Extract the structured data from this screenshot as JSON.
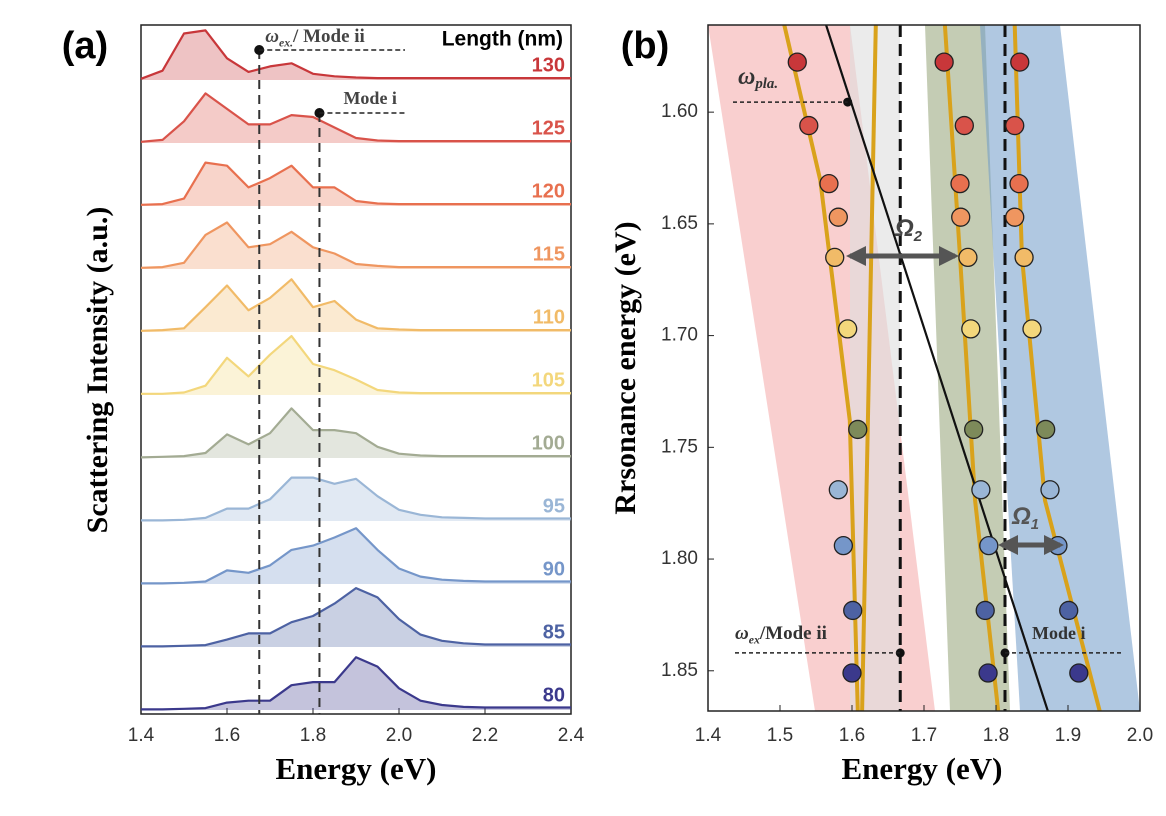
{
  "chart_data": [
    {
      "type": "line",
      "title": "(a)",
      "xlabel": "Energy (eV)",
      "ylabel": "Scattering Intensity (a.u.)",
      "legend_title": "Length (nm)",
      "x": [
        1.4,
        1.45,
        1.5,
        1.55,
        1.6,
        1.65,
        1.7,
        1.75,
        1.8,
        1.85,
        1.9,
        1.95,
        2.0,
        2.05,
        2.1,
        2.15,
        2.2,
        2.25,
        2.3,
        2.35,
        2.4
      ],
      "series": [
        {
          "name": "130",
          "color": "#c8373a",
          "values": [
            0.02,
            0.15,
            0.75,
            0.8,
            0.35,
            0.13,
            0.22,
            0.27,
            0.1,
            0.06,
            0.04,
            0.03,
            0.03,
            0.03,
            0.03,
            0.03,
            0.03,
            0.03,
            0.03,
            0.03,
            0.03
          ]
        },
        {
          "name": "125",
          "color": "#d9534a",
          "values": [
            0.02,
            0.05,
            0.35,
            0.8,
            0.55,
            0.3,
            0.3,
            0.45,
            0.42,
            0.25,
            0.08,
            0.04,
            0.03,
            0.03,
            0.03,
            0.03,
            0.03,
            0.03,
            0.03,
            0.03,
            0.03
          ]
        },
        {
          "name": "120",
          "color": "#e8704f",
          "values": [
            0.02,
            0.03,
            0.12,
            0.7,
            0.65,
            0.3,
            0.45,
            0.65,
            0.3,
            0.3,
            0.08,
            0.04,
            0.03,
            0.03,
            0.03,
            0.03,
            0.03,
            0.03,
            0.03,
            0.03,
            0.03
          ]
        },
        {
          "name": "115",
          "color": "#ef9660",
          "values": [
            0.02,
            0.03,
            0.1,
            0.55,
            0.75,
            0.35,
            0.4,
            0.6,
            0.35,
            0.25,
            0.08,
            0.05,
            0.03,
            0.03,
            0.03,
            0.03,
            0.03,
            0.03,
            0.03,
            0.03,
            0.03
          ]
        },
        {
          "name": "110",
          "color": "#f1bb68",
          "values": [
            0.02,
            0.03,
            0.06,
            0.4,
            0.75,
            0.35,
            0.55,
            0.85,
            0.4,
            0.5,
            0.2,
            0.06,
            0.04,
            0.03,
            0.03,
            0.03,
            0.03,
            0.03,
            0.03,
            0.03,
            0.03
          ]
        },
        {
          "name": "105",
          "color": "#f3d77c",
          "values": [
            0.02,
            0.02,
            0.04,
            0.15,
            0.6,
            0.3,
            0.65,
            0.95,
            0.5,
            0.4,
            0.25,
            0.08,
            0.04,
            0.03,
            0.03,
            0.03,
            0.03,
            0.03,
            0.03,
            0.03,
            0.03
          ]
        },
        {
          "name": "100",
          "color": "#a3ab93",
          "values": [
            0.01,
            0.02,
            0.03,
            0.08,
            0.38,
            0.22,
            0.4,
            0.8,
            0.45,
            0.45,
            0.4,
            0.18,
            0.07,
            0.04,
            0.03,
            0.03,
            0.03,
            0.03,
            0.03,
            0.03,
            0.03
          ]
        },
        {
          "name": "95",
          "color": "#9ab6d6",
          "values": [
            0.01,
            0.01,
            0.02,
            0.05,
            0.2,
            0.2,
            0.35,
            0.7,
            0.7,
            0.6,
            0.68,
            0.4,
            0.18,
            0.1,
            0.06,
            0.05,
            0.04,
            0.04,
            0.04,
            0.04,
            0.04
          ]
        },
        {
          "name": "90",
          "color": "#7596c9",
          "values": [
            0.01,
            0.01,
            0.02,
            0.04,
            0.22,
            0.18,
            0.3,
            0.55,
            0.62,
            0.75,
            0.9,
            0.55,
            0.25,
            0.12,
            0.07,
            0.05,
            0.04,
            0.04,
            0.04,
            0.04,
            0.04
          ]
        },
        {
          "name": "85",
          "color": "#4d62a3",
          "values": [
            0.01,
            0.01,
            0.02,
            0.03,
            0.12,
            0.22,
            0.22,
            0.4,
            0.5,
            0.7,
            0.95,
            0.8,
            0.45,
            0.2,
            0.1,
            0.06,
            0.04,
            0.04,
            0.04,
            0.04,
            0.04
          ]
        },
        {
          "name": "80",
          "color": "#3b398c",
          "values": [
            0.01,
            0.01,
            0.02,
            0.03,
            0.12,
            0.15,
            0.15,
            0.4,
            0.45,
            0.45,
            0.85,
            0.7,
            0.35,
            0.15,
            0.08,
            0.05,
            0.04,
            0.04,
            0.04,
            0.04,
            0.04
          ]
        }
      ],
      "xlim": [
        1.4,
        2.4
      ],
      "xticks": [
        1.4,
        1.6,
        1.8,
        {
          "value": 2.0,
          "label": "2.0"
        },
        2.2,
        2.4
      ],
      "exciton_lines": [
        1.675,
        1.815
      ],
      "annotations": [
        {
          "symbol": "ω",
          "sub": "ex.",
          "text": "/ Mode ii"
        },
        {
          "text": "Mode i"
        }
      ]
    },
    {
      "type": "scatter",
      "title": "(b)",
      "xlabel": "Energy (eV)",
      "ylabel": "Rrsonance energy (eV)",
      "y": [
        1.5776,
        1.606,
        1.632,
        1.647,
        1.665,
        1.697,
        1.742,
        1.769,
        1.794,
        1.823,
        1.851
      ],
      "point_colors": [
        "#c8373a",
        "#d9534a",
        "#e8704f",
        "#ef9660",
        "#f1bb68",
        "#f3d77c",
        "#7d8a5a",
        "#9ab6d6",
        "#7596c9",
        "#4d62a3",
        "#3b398c"
      ],
      "series": [
        {
          "x": [
            1.524,
            1.54,
            1.568,
            1.581,
            1.576,
            1.594,
            1.608,
            1.581,
            1.588,
            1.601,
            1.6
          ]
        },
        {
          "x": [
            1.728,
            1.756,
            1.75,
            1.751,
            1.761,
            1.765,
            1.769,
            1.779,
            1.79,
            1.785,
            1.789
          ]
        },
        {
          "x": [
            1.833,
            1.826,
            1.832,
            1.826,
            1.839,
            1.85,
            1.869,
            1.875,
            1.886,
            1.901,
            1.915
          ]
        }
      ],
      "fits": [
        {
          "x": [
            1.506,
            1.556,
            1.597,
            1.608
          ],
          "y": [
            1.561,
            1.6305,
            1.738,
            1.868
          ]
        },
        {
          "x": [
            1.633,
            1.614
          ],
          "y": [
            1.561,
            1.868
          ]
        },
        {
          "x": [
            1.729,
            1.75,
            1.771,
            1.803
          ],
          "y": [
            1.561,
            1.6645,
            1.7738,
            1.868
          ]
        },
        {
          "x": [
            1.826,
            1.836,
            1.868,
            1.944
          ],
          "y": [
            1.561,
            1.6645,
            1.7738,
            1.868
          ]
        }
      ],
      "fit_color": "#d9a21b",
      "plasmon_line": {
        "x": [
          1.564,
          1.872
        ],
        "y": [
          1.561,
          1.868
        ]
      },
      "exciton_lines": [
        1.667,
        1.8125
      ],
      "markers": [
        {
          "x": 1.594,
          "y": 1.5955
        },
        {
          "x": 1.667,
          "y": 1.842
        },
        {
          "x": 1.8125,
          "y": 1.842
        }
      ],
      "xlim": [
        1.4,
        2.0
      ],
      "ylim": [
        1.561,
        1.868
      ],
      "y_inverted": true,
      "xticks": [
        1.4,
        1.5,
        1.6,
        1.7,
        1.8,
        1.9,
        {
          "value": 2.0,
          "label": "2.0"
        }
      ],
      "yticks": [
        {
          "value": 1.6,
          "label": "1.60"
        },
        1.65,
        {
          "value": 1.7,
          "label": "1.70"
        },
        1.75,
        {
          "value": 1.8,
          "label": "1.80"
        },
        1.85
      ],
      "annotations": [
        {
          "symbol": "ω",
          "sub": "pla."
        },
        {
          "symbol": "Ω",
          "sub": "2"
        },
        {
          "symbol": "Ω",
          "sub": "1"
        },
        {
          "symbol": "ω",
          "sub": "ex",
          "text": "/Mode ii"
        },
        {
          "text": "Mode i"
        }
      ]
    }
  ]
}
